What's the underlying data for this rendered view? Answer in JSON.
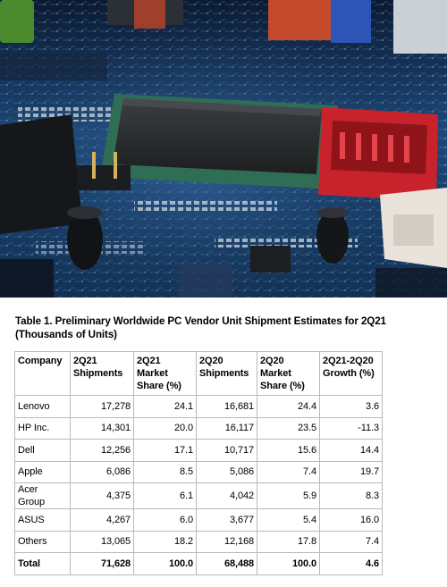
{
  "caption": "Table 1. Preliminary Worldwide PC Vendor Unit Shipment Estimates for 2Q21 (Thousands of Units)",
  "table": {
    "headers": [
      "Company",
      "2Q21 Shipments",
      "2Q21 Market Share (%)",
      "2Q20 Shipments",
      "2Q20 Market Share (%)",
      "2Q21-2Q20 Growth (%)"
    ],
    "rows": [
      [
        "Lenovo",
        "17,278",
        "24.1",
        "16,681",
        "24.4",
        "3.6"
      ],
      [
        "HP Inc.",
        "14,301",
        "20.0",
        "16,117",
        "23.5",
        "-11.3"
      ],
      [
        "Dell",
        "12,256",
        "17.1",
        "10,717",
        "15.6",
        "14.4"
      ],
      [
        "Apple",
        "6,086",
        "8.5",
        "5,086",
        "7.4",
        "19.7"
      ],
      [
        "Acer Group",
        "4,375",
        "6.1",
        "4,042",
        "5.9",
        "8.3"
      ],
      [
        "ASUS",
        "4,267",
        "6.0",
        "3,677",
        "5.4",
        "16.0"
      ],
      [
        "Others",
        "13,065",
        "18.2",
        "12,168",
        "17.8",
        "7.4"
      ]
    ],
    "total": [
      "Total",
      "71,628",
      "100.0",
      "68,488",
      "100.0",
      "4.6"
    ]
  }
}
